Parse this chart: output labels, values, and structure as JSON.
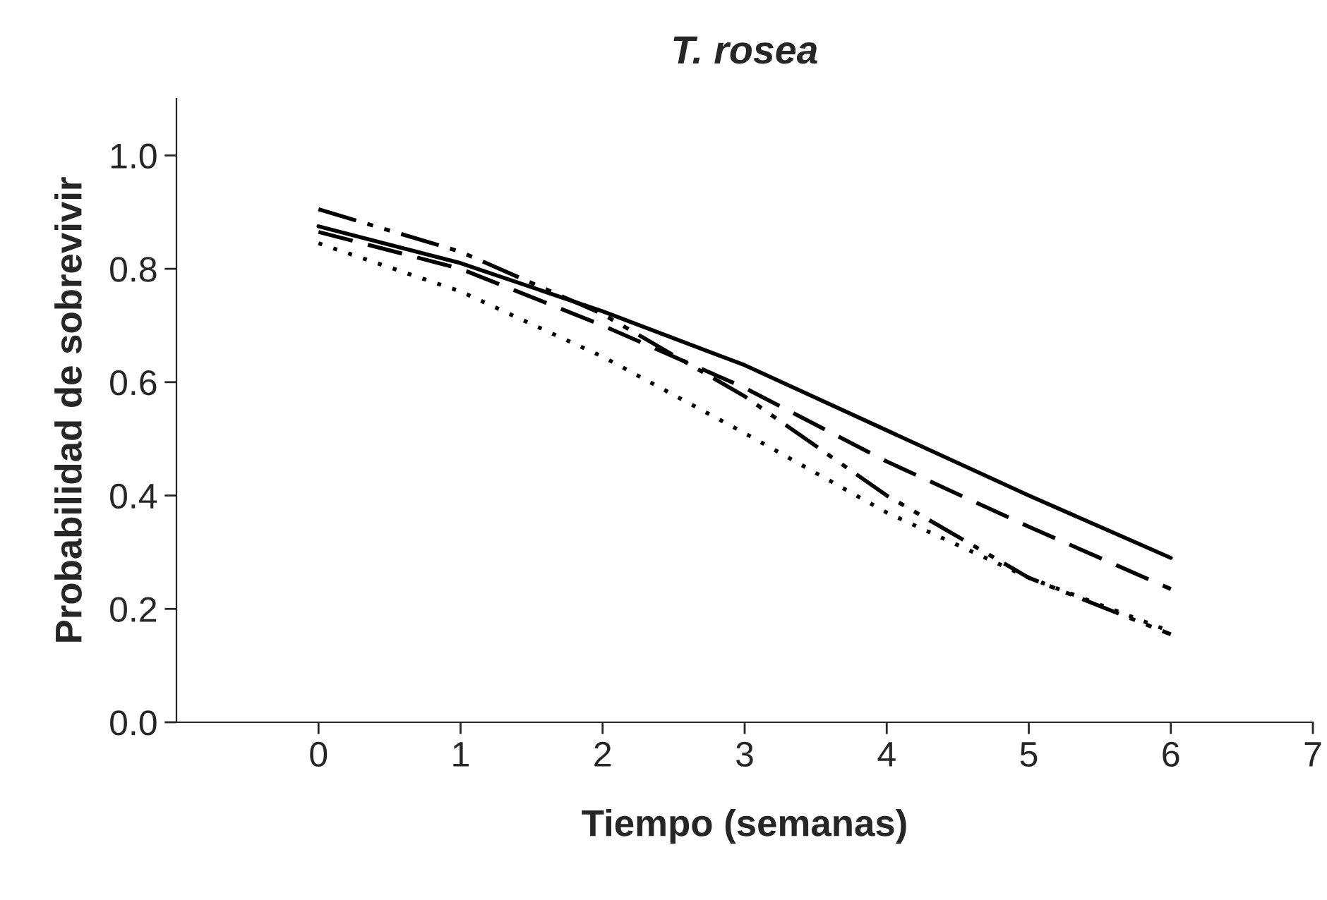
{
  "chart_data": {
    "type": "line",
    "title": "T. rosea",
    "xlabel": "Tiempo (semanas)",
    "ylabel": "Probabilidad de sobrevivir",
    "x": [
      0,
      1,
      2,
      3,
      4,
      5,
      6
    ],
    "series": [
      {
        "color": "#000000",
        "line_style": "solid",
        "values": [
          0.875,
          0.81,
          0.725,
          0.63,
          0.515,
          0.4,
          0.29
        ]
      },
      {
        "color": "#000000",
        "line_style": "dashed",
        "values": [
          0.865,
          0.8,
          0.7,
          0.59,
          0.46,
          0.345,
          0.235
        ]
      },
      {
        "color": "#000000",
        "line_style": "dashdot",
        "values": [
          0.905,
          0.83,
          0.72,
          0.575,
          0.4,
          0.255,
          0.155
        ]
      },
      {
        "color": "#000000",
        "line_style": "dotted",
        "values": [
          0.845,
          0.76,
          0.645,
          0.51,
          0.37,
          0.255,
          0.16
        ]
      }
    ],
    "xlim": [
      -1,
      7
    ],
    "xticks": [
      0,
      1,
      2,
      3,
      4,
      5,
      6,
      7
    ],
    "ylim": [
      0,
      1.1
    ],
    "yticks": [
      {
        "value": 0,
        "label": "0.0"
      },
      {
        "value": 0.2,
        "label": "0.2"
      },
      {
        "value": 0.4,
        "label": "0.4"
      },
      {
        "value": 0.6,
        "label": "0.6"
      },
      {
        "value": 0.8,
        "label": "0.8"
      },
      {
        "value": 1.0,
        "label": "1.0"
      }
    ],
    "grid": false,
    "marker": "none"
  }
}
